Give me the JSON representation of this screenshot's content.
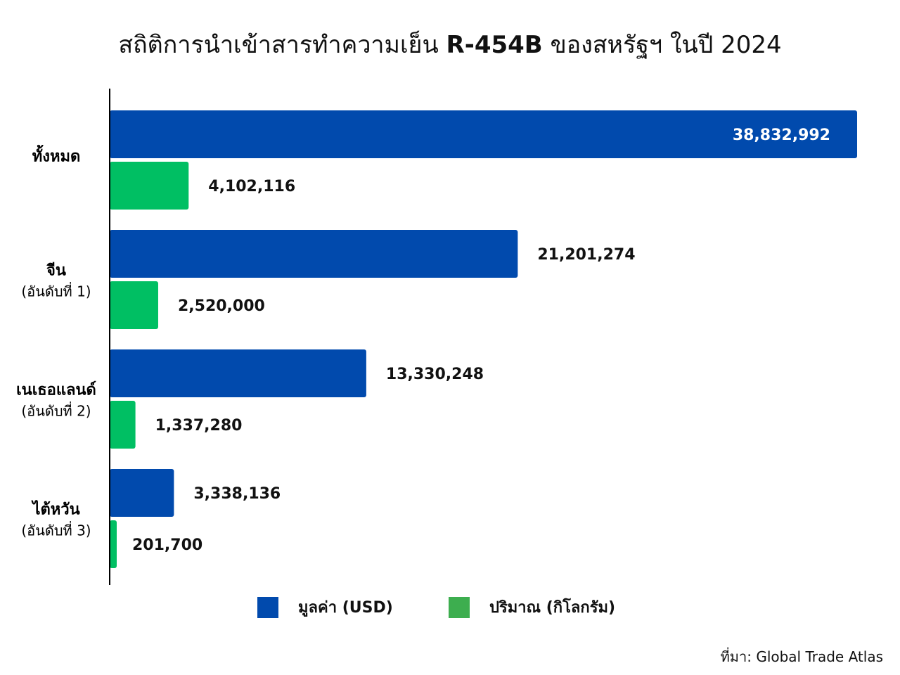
{
  "chart_data": {
    "type": "bar",
    "orientation": "horizontal",
    "title": {
      "prefix": "สถิติการนำเข้าสารทำความเย็น ",
      "emphasis": "R-454B",
      "suffix": " ของสหรัฐฯ ในปี 2024"
    },
    "categories": [
      {
        "name": "ทั้งหมด",
        "sub": ""
      },
      {
        "name": "จีน",
        "sub": "(อันดับที่ 1)"
      },
      {
        "name": "เนเธอแลนด์",
        "sub": "(อันดับที่ 2)"
      },
      {
        "name": "ไต้หวัน",
        "sub": "(อันดับที่ 3)"
      }
    ],
    "series": [
      {
        "name": "มูลค่า (USD)",
        "color": "#014AAD",
        "values": [
          38832992,
          21201274,
          13330248,
          3338136
        ],
        "labels": [
          "38,832,992",
          "21,201,274",
          "13,330,248",
          "3,338,136"
        ]
      },
      {
        "name": "ปริมาณ (กิโลกรัม)",
        "color": "#00BF63",
        "values": [
          4102116,
          2520000,
          1337280,
          201700
        ],
        "labels": [
          "4,102,116",
          "2,520,000",
          "1,337,280",
          "201,700"
        ]
      }
    ],
    "legend_swatch_colors": [
      "#014AAD",
      "#3DAE4F"
    ],
    "xlim": [
      0,
      38832992
    ],
    "grid": false,
    "legend_position": "bottom"
  },
  "source": "ที่มา: Global Trade Atlas"
}
